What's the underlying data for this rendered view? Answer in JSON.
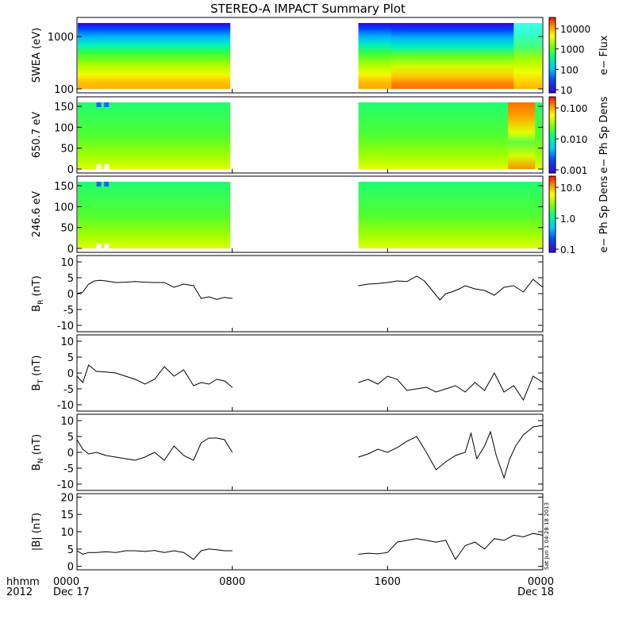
{
  "title": "STEREO-A IMPACT Summary Plot",
  "stamp": "Sat Jun 1 04:28:18 2013",
  "x_axis": {
    "row_label_1": "hhmm",
    "row_label_2": "2012",
    "ticks": [
      {
        "hour": 0,
        "label": "0000",
        "date": "Dec 17"
      },
      {
        "hour": 8,
        "label": "0800",
        "date": ""
      },
      {
        "hour": 16,
        "label": "1600",
        "date": ""
      },
      {
        "hour": 24,
        "label": "0000",
        "date": "Dec 18"
      }
    ],
    "range_hours": [
      0,
      24
    ]
  },
  "panels": [
    {
      "id": "swea",
      "ylabel": "SWEA (eV)",
      "cbar_label": "e− Flux",
      "cbar_ticks": [
        "10000",
        "1000",
        "100",
        "10"
      ],
      "yticks": [
        "1000",
        "100"
      ]
    },
    {
      "id": "pad650",
      "ylabel": "650.7 eV",
      "cbar_label": "e− Ph Sp Dens",
      "cbar_ticks": [
        "0.100",
        "0.010",
        "0.001"
      ],
      "yticks": [
        "150",
        "100",
        "50",
        "0"
      ]
    },
    {
      "id": "pad246",
      "ylabel": "246.6 eV",
      "cbar_label": "e− Ph Sp Dens",
      "cbar_ticks": [
        "10.0",
        "1.0",
        "0.1"
      ],
      "yticks": [
        "150",
        "100",
        "50",
        "0"
      ]
    },
    {
      "id": "br",
      "ylabel": "B_R (nT)",
      "yticks": [
        "10",
        "5",
        "0",
        "-5",
        "-10"
      ]
    },
    {
      "id": "bt",
      "ylabel": "B_T (nT)",
      "yticks": [
        "10",
        "5",
        "0",
        "-5",
        "-10"
      ]
    },
    {
      "id": "bn",
      "ylabel": "B_N (nT)",
      "yticks": [
        "10",
        "5",
        "0",
        "-5",
        "-10"
      ]
    },
    {
      "id": "bmag",
      "ylabel": "|B| (nT)",
      "yticks": [
        "20",
        "15",
        "10",
        "5",
        "0"
      ]
    }
  ],
  "chart_data": [
    {
      "type": "heatmap",
      "title": "STEREO-A IMPACT Summary Plot",
      "ylabel": "SWEA (eV)",
      "yscale": "log",
      "ylim": [
        100,
        1500
      ],
      "colorbar": {
        "label": "e− Flux",
        "scale": "log",
        "range": [
          10,
          30000
        ]
      },
      "data_gap_hours": [
        7.9,
        14.5
      ],
      "description_levels": "high energy blue (~10), mid green (~1000), low energy orange/red (~10000+)"
    },
    {
      "type": "heatmap",
      "ylabel": "650.7 eV",
      "ylim": [
        0,
        180
      ],
      "colorbar": {
        "label": "e− Ph Sp Dens",
        "scale": "log",
        "range": [
          0.001,
          0.1
        ]
      },
      "data_gap_hours": [
        7.9,
        14.5
      ]
    },
    {
      "type": "heatmap",
      "ylabel": "246.6 eV",
      "ylim": [
        0,
        180
      ],
      "colorbar": {
        "label": "e− Ph Sp Dens",
        "scale": "log",
        "range": [
          0.1,
          10.0
        ]
      },
      "data_gap_hours": [
        7.9,
        14.5
      ]
    },
    {
      "type": "line",
      "ylabel": "B_R (nT)",
      "ylim": [
        -12,
        12
      ],
      "x": [
        0,
        0.3,
        0.6,
        0.9,
        1.2,
        1.5,
        2,
        2.5,
        3,
        3.5,
        4,
        4.5,
        5,
        5.5,
        6,
        6.4,
        6.8,
        7.2,
        7.6,
        8.0,
        14.5,
        15,
        15.5,
        16,
        16.5,
        17,
        17.5,
        17.9,
        18.3,
        18.7,
        19,
        19.3,
        19.7,
        20,
        20.5,
        21,
        21.5,
        22,
        22.5,
        23,
        23.5,
        24
      ],
      "y": [
        0,
        0.5,
        3,
        4,
        4.2,
        4,
        3.5,
        3.6,
        3.8,
        3.6,
        3.5,
        3.5,
        2,
        3,
        2.5,
        -1.5,
        -1,
        -1.8,
        -1.2,
        -1.5,
        2.5,
        3,
        3.2,
        3.5,
        4,
        3.8,
        5.5,
        4,
        1,
        -2,
        0,
        0.5,
        1.5,
        2.5,
        1.5,
        1,
        -0.5,
        2,
        2.5,
        0.5,
        4.5,
        2
      ]
    },
    {
      "type": "line",
      "ylabel": "B_T (nT)",
      "ylim": [
        -12,
        12
      ],
      "x": [
        0,
        0.3,
        0.6,
        1,
        1.5,
        2,
        2.5,
        3,
        3.5,
        4,
        4.5,
        5,
        5.5,
        6,
        6.4,
        6.8,
        7.2,
        7.6,
        8.0,
        14.5,
        15,
        15.5,
        16,
        16.5,
        17,
        17.5,
        18,
        18.5,
        19,
        19.5,
        20,
        20.5,
        21,
        21.5,
        22,
        22.5,
        23,
        23.5,
        24
      ],
      "y": [
        -1,
        -3,
        2.5,
        0.5,
        0.3,
        0,
        -1,
        -2,
        -3.5,
        -2,
        2,
        -1,
        1,
        -4,
        -3,
        -3.5,
        -2,
        -2.5,
        -4.5,
        -3,
        -2,
        -3.5,
        -1,
        -2,
        -5.5,
        -5,
        -4.5,
        -6,
        -5,
        -4,
        -6,
        -3,
        -5.5,
        0,
        -6,
        -4,
        -8.5,
        -1,
        -3
      ]
    },
    {
      "type": "line",
      "ylabel": "B_N (nT)",
      "ylim": [
        -12,
        12
      ],
      "x": [
        0,
        0.3,
        0.6,
        1,
        1.5,
        2,
        2.5,
        3,
        3.5,
        4,
        4.5,
        5,
        5.5,
        6,
        6.4,
        6.8,
        7.2,
        7.6,
        8.0,
        14.5,
        15,
        15.5,
        16,
        16.5,
        17,
        17.5,
        18,
        18.5,
        19,
        19.5,
        20,
        20.3,
        20.6,
        21,
        21.3,
        21.6,
        22,
        22.3,
        22.6,
        23,
        23.5,
        24
      ],
      "y": [
        4,
        1,
        -0.5,
        0,
        -1,
        -1.5,
        -2,
        -2.5,
        -1.5,
        0,
        -2.5,
        2,
        -1,
        -2.5,
        3,
        4.5,
        4.5,
        4,
        0,
        -1.5,
        -0.5,
        1,
        0,
        1.5,
        3.5,
        5,
        0,
        -5.5,
        -3,
        -1,
        0,
        6,
        -2,
        2,
        6.5,
        -1,
        -8,
        -2,
        2,
        5.5,
        8,
        8.5
      ]
    },
    {
      "type": "line",
      "ylabel": "|B| (nT)",
      "ylim": [
        -1,
        21
      ],
      "x": [
        0,
        0.3,
        0.6,
        1,
        1.5,
        2,
        2.5,
        3,
        3.5,
        4,
        4.5,
        5,
        5.5,
        6,
        6.4,
        6.8,
        7.2,
        7.6,
        8.0,
        14.5,
        15,
        15.5,
        16,
        16.5,
        17,
        17.5,
        18,
        18.5,
        19,
        19.5,
        20,
        20.5,
        21,
        21.5,
        22,
        22.5,
        23,
        23.5,
        24
      ],
      "y": [
        4.5,
        3.5,
        4,
        4,
        4.2,
        4,
        4.5,
        4.5,
        4.3,
        4.6,
        4,
        4.5,
        4,
        2,
        4.5,
        5,
        4.8,
        4.5,
        4.5,
        3.5,
        3.8,
        3.6,
        4,
        7,
        7.5,
        8,
        7.5,
        7,
        7.5,
        2,
        6,
        7,
        5,
        8,
        7.5,
        9,
        8.5,
        9.5,
        9
      ]
    }
  ]
}
